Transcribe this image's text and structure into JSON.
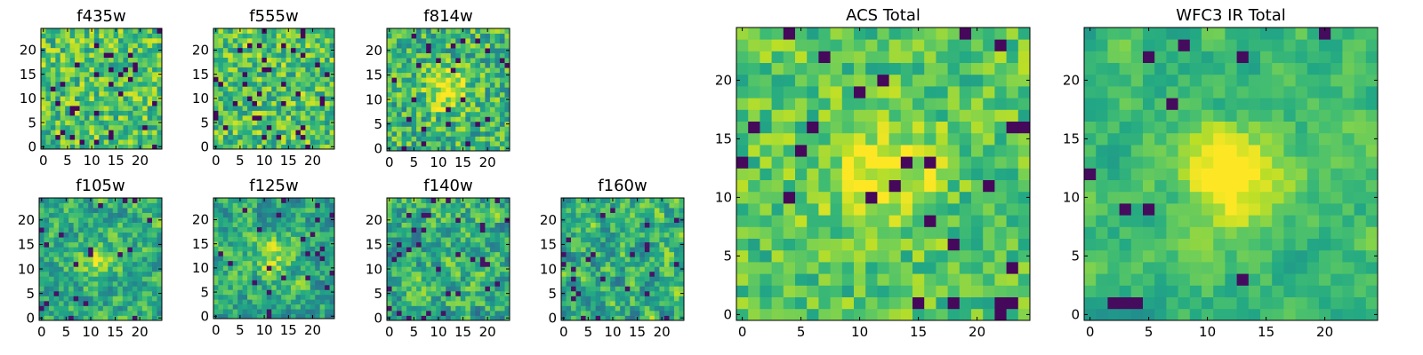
{
  "chart_data": [
    {
      "type": "heatmap",
      "title": "f435w",
      "x_ticks": [
        "0",
        "5",
        "10",
        "15",
        "20"
      ],
      "y_ticks": [
        "0",
        "5",
        "10",
        "15",
        "20"
      ],
      "grid_size": 25,
      "seed": 11,
      "colormap": "viridis",
      "pattern": "noise",
      "xlim": [
        -0.5,
        24.5
      ],
      "ylim": [
        -0.5,
        24.5
      ]
    },
    {
      "type": "heatmap",
      "title": "f555w",
      "x_ticks": [
        "0",
        "5",
        "10",
        "15",
        "20"
      ],
      "y_ticks": [
        "0",
        "5",
        "10",
        "15",
        "20"
      ],
      "grid_size": 25,
      "seed": 23,
      "colormap": "viridis",
      "pattern": "noise",
      "xlim": [
        -0.5,
        24.5
      ],
      "ylim": [
        -0.5,
        24.5
      ]
    },
    {
      "type": "heatmap",
      "title": "f814w",
      "x_ticks": [
        "0",
        "5",
        "10",
        "15",
        "20"
      ],
      "y_ticks": [
        "0",
        "5",
        "10",
        "15",
        "20"
      ],
      "grid_size": 25,
      "seed": 37,
      "colormap": "viridis",
      "pattern": "faint_source",
      "xlim": [
        -0.5,
        24.5
      ],
      "ylim": [
        -0.5,
        24.5
      ]
    },
    {
      "type": "heatmap",
      "title": "f105w",
      "x_ticks": [
        "0",
        "5",
        "10",
        "15",
        "20"
      ],
      "y_ticks": [
        "0",
        "5",
        "10",
        "15",
        "20"
      ],
      "grid_size": 25,
      "seed": 41,
      "colormap": "viridis",
      "pattern": "smooth_source",
      "xlim": [
        -0.5,
        24.5
      ],
      "ylim": [
        -0.5,
        24.5
      ]
    },
    {
      "type": "heatmap",
      "title": "f125w",
      "x_ticks": [
        "0",
        "5",
        "10",
        "15",
        "20"
      ],
      "y_ticks": [
        "0",
        "5",
        "10",
        "15",
        "20"
      ],
      "grid_size": 25,
      "seed": 53,
      "colormap": "viridis",
      "pattern": "smooth_source",
      "xlim": [
        -0.5,
        24.5
      ],
      "ylim": [
        -0.5,
        24.5
      ]
    },
    {
      "type": "heatmap",
      "title": "f140w",
      "x_ticks": [
        "0",
        "5",
        "10",
        "15",
        "20"
      ],
      "y_ticks": [
        "0",
        "5",
        "10",
        "15",
        "20"
      ],
      "grid_size": 25,
      "seed": 67,
      "colormap": "viridis",
      "pattern": "smooth_noise",
      "xlim": [
        -0.5,
        24.5
      ],
      "ylim": [
        -0.5,
        24.5
      ]
    },
    {
      "type": "heatmap",
      "title": "f160w",
      "x_ticks": [
        "0",
        "5",
        "10",
        "15",
        "20"
      ],
      "y_ticks": [
        "0",
        "5",
        "10",
        "15",
        "20"
      ],
      "grid_size": 25,
      "seed": 79,
      "colormap": "viridis",
      "pattern": "smooth_noise",
      "xlim": [
        -0.5,
        24.5
      ],
      "ylim": [
        -0.5,
        24.5
      ]
    },
    {
      "type": "heatmap",
      "title": "ACS Total",
      "x_ticks": [
        "0",
        "5",
        "10",
        "15",
        "20"
      ],
      "y_ticks": [
        "0",
        "5",
        "10",
        "15",
        "20"
      ],
      "grid_size": 25,
      "seed": 83,
      "colormap": "viridis",
      "pattern": "total_acs",
      "xlim": [
        -0.5,
        24.5
      ],
      "ylim": [
        -0.5,
        24.5
      ]
    },
    {
      "type": "heatmap",
      "title": "WFC3 IR Total",
      "x_ticks": [
        "0",
        "5",
        "10",
        "15",
        "20"
      ],
      "y_ticks": [
        "0",
        "5",
        "10",
        "15",
        "20"
      ],
      "grid_size": 25,
      "seed": 97,
      "colormap": "viridis",
      "pattern": "total_ir",
      "xlim": [
        -0.5,
        24.5
      ],
      "ylim": [
        -0.5,
        24.5
      ]
    }
  ]
}
